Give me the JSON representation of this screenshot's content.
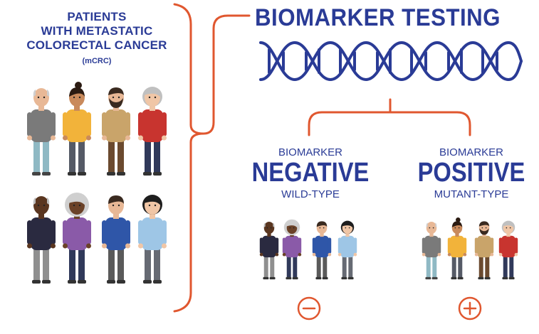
{
  "left_panel": {
    "title_lines": [
      "PATIENTS",
      "WITH METASTATIC",
      "COLORECTAL CANCER"
    ],
    "subtitle": "(mCRC)"
  },
  "main": {
    "title": "BIOMARKER TESTING"
  },
  "negative": {
    "pre": "BIOMARKER",
    "label": "NEGATIVE",
    "type": "WILD-TYPE",
    "sign": "minus-icon"
  },
  "positive": {
    "pre": "BIOMARKER",
    "label": "POSITIVE",
    "type": "MUTANT-TYPE",
    "sign": "plus-icon"
  },
  "colors": {
    "brand_blue": "#2a3b96",
    "accent_orange": "#e0572f"
  },
  "icons": [
    "dna-helix-icon",
    "minus-icon",
    "plus-icon",
    "person-icon"
  ]
}
